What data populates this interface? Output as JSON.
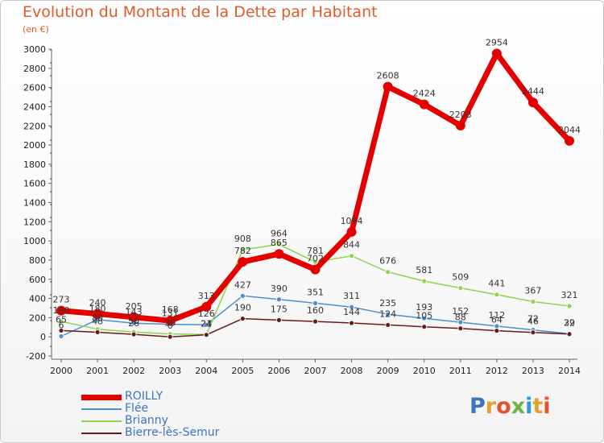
{
  "title": "Evolution du Montant de la Dette par Habitant",
  "subtitle": "(en €)",
  "logo_text": "Proxiti",
  "chart_data": {
    "type": "line",
    "title": "Evolution du Montant de la Dette par Habitant",
    "subtitle": "(en €)",
    "x": [
      2000,
      2001,
      2002,
      2003,
      2004,
      2005,
      2006,
      2007,
      2008,
      2009,
      2010,
      2011,
      2012,
      2013,
      2014
    ],
    "ylim": [
      -200,
      3000
    ],
    "yticks": [
      -200,
      0,
      200,
      400,
      600,
      800,
      1000,
      1200,
      1400,
      1600,
      1800,
      2000,
      2200,
      2400,
      2600,
      2800,
      3000
    ],
    "grid": false,
    "legend_position": "bottom-left",
    "series": [
      {
        "name": "ROILLY",
        "color": "#e50000",
        "values": [
          273,
          240,
          205,
          168,
          313,
          782,
          865,
          702,
          1094,
          2608,
          2424,
          2203,
          2954,
          2444,
          2044
        ],
        "labels": [
          "273",
          "240",
          "205",
          "168",
          "313",
          "782",
          "865",
          "702",
          "1094",
          "2608",
          "2424",
          "2203",
          "2954",
          "2444",
          "2044"
        ]
      },
      {
        "name": "Flée",
        "color": "#4a90d0",
        "values": [
          6,
          180,
          143,
          131,
          126,
          427,
          390,
          351,
          311,
          235,
          193,
          152,
          112,
          72,
          32
        ],
        "labels": [
          "6",
          "180",
          "143",
          "131",
          "126",
          "427",
          "390",
          "351",
          "311",
          "235",
          "193",
          "152",
          "112",
          "72",
          "32"
        ]
      },
      {
        "name": "Brianny",
        "color": "#8ed44e",
        "values": [
          160,
          80,
          50,
          30,
          24,
          908,
          964,
          781,
          844,
          676,
          581,
          509,
          441,
          367,
          321
        ],
        "labels": [
          "160",
          "80",
          "50",
          "30",
          "24",
          "908",
          "964",
          "781",
          "844",
          "676",
          "581",
          "509",
          "441",
          "367",
          "321"
        ]
      },
      {
        "name": "Bierre-lès-Semur",
        "color": "#6b1a1a",
        "values": [
          65,
          48,
          26,
          0,
          21,
          190,
          175,
          160,
          144,
          124,
          105,
          88,
          64,
          46,
          29
        ],
        "labels": [
          "65",
          "48",
          "26",
          "0",
          "21",
          "190",
          "175",
          "160",
          "144",
          "124",
          "105",
          "88",
          "64",
          "46",
          "29"
        ]
      }
    ]
  }
}
